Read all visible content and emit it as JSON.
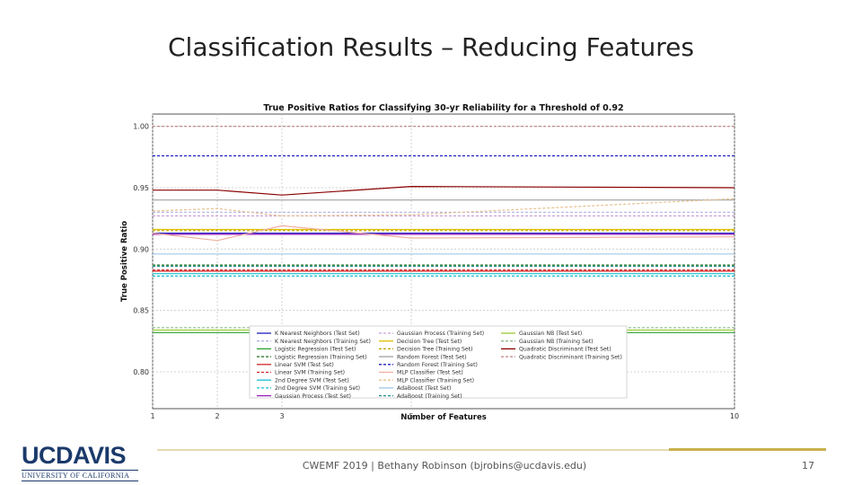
{
  "slide": {
    "title": "Classification Results – Reducing Features",
    "footer": "CWEMF 2019 | Bethany Robinson (bjrobins@ucdavis.edu)",
    "page_number": "17",
    "logo_main": "UCDAVIS",
    "logo_sub": "UNIVERSITY OF CALIFORNIA"
  },
  "chart_data": {
    "type": "line",
    "title": "True Positive Ratios for Classifying 30-yr Reliability for a Threshold of 0.92",
    "xlabel": "Number of Features",
    "ylabel": "True Positive Ratio",
    "x": [
      1,
      2,
      3,
      5,
      10
    ],
    "xlim": [
      1,
      10
    ],
    "ylim": [
      0.77,
      1.01
    ],
    "yticks": [
      "0.80",
      "0.85",
      "0.90",
      "0.95",
      "1.00"
    ],
    "xticks": [
      "1",
      "2",
      "3",
      "5",
      "10"
    ],
    "grid": true,
    "legend_position": "lower-center",
    "series": [
      {
        "name": "K Nearest Neighbors (Test Set)",
        "color": "#1f1fbf",
        "dash": "solid",
        "values": [
          0.913,
          0.913,
          0.913,
          0.913,
          0.913
        ]
      },
      {
        "name": "K Nearest Neighbors (Training Set)",
        "color": "#b0b0e0",
        "dash": "dashed",
        "values": [
          0.93,
          0.93,
          0.93,
          0.93,
          0.93
        ]
      },
      {
        "name": "Logistic Regression (Test Set)",
        "color": "#2ca02c",
        "dash": "solid",
        "values": [
          0.832,
          0.832,
          0.832,
          0.832,
          0.832
        ]
      },
      {
        "name": "Logistic Regression (Training Set)",
        "color": "#1a6e1a",
        "dash": "dashed",
        "values": [
          0.887,
          0.887,
          0.887,
          0.887,
          0.887
        ]
      },
      {
        "name": "Linear SVM (Test Set)",
        "color": "#d62728",
        "dash": "solid",
        "values": [
          0.882,
          0.882,
          0.882,
          0.882,
          0.882
        ]
      },
      {
        "name": "Linear SVM (Training Set)",
        "color": "#d62728",
        "dash": "dashed",
        "values": [
          0.883,
          0.883,
          0.883,
          0.883,
          0.883
        ]
      },
      {
        "name": "2nd Degree SVM (Test Set)",
        "color": "#17becf",
        "dash": "solid",
        "values": [
          0.88,
          0.88,
          0.88,
          0.88,
          0.88
        ]
      },
      {
        "name": "2nd Degree SVM (Training Set)",
        "color": "#17becf",
        "dash": "dashed",
        "values": [
          0.878,
          0.878,
          0.878,
          0.878,
          0.878
        ]
      },
      {
        "name": "Gaussian Process (Test Set)",
        "color": "#9b1fbf",
        "dash": "solid",
        "values": [
          0.912,
          0.912,
          0.912,
          0.912,
          0.912
        ]
      },
      {
        "name": "Gaussian Process (Training Set)",
        "color": "#c8a0d8",
        "dash": "dashed",
        "values": [
          0.927,
          0.927,
          0.927,
          0.927,
          0.927
        ]
      },
      {
        "name": "Decision Tree (Test Set)",
        "color": "#e0c000",
        "dash": "solid",
        "values": [
          0.916,
          0.916,
          0.916,
          0.916,
          0.916
        ]
      },
      {
        "name": "Decision Tree (Training Set)",
        "color": "#c0a000",
        "dash": "dashed",
        "values": [
          0.915,
          0.915,
          0.915,
          0.915,
          0.915
        ]
      },
      {
        "name": "Random Forest (Test Set)",
        "color": "#a0a0a0",
        "dash": "solid",
        "values": [
          0.94,
          0.94,
          0.94,
          0.94,
          0.94
        ]
      },
      {
        "name": "Random Forest (Training Set)",
        "color": "#1f1fbf",
        "dash": "dashed",
        "values": [
          0.976,
          0.976,
          0.976,
          0.976,
          0.976
        ]
      },
      {
        "name": "MLP Classifier (Test Set)",
        "color": "#f0b0a0",
        "dash": "solid",
        "values": [
          0.913,
          0.907,
          0.919,
          0.909,
          0.91
        ]
      },
      {
        "name": "MLP Classifier (Training Set)",
        "color": "#e8c090",
        "dash": "dashed",
        "values": [
          0.931,
          0.933,
          0.927,
          0.928,
          0.941
        ]
      },
      {
        "name": "AdaBoost (Test Set)",
        "color": "#a0c8e8",
        "dash": "solid",
        "values": [
          0.896,
          0.896,
          0.896,
          0.896,
          0.896
        ]
      },
      {
        "name": "AdaBoost (Training Set)",
        "color": "#1f8f8f",
        "dash": "dashed",
        "values": [
          0.886,
          0.886,
          0.886,
          0.886,
          0.886
        ]
      },
      {
        "name": "Gaussian NB (Test Set)",
        "color": "#9acd32",
        "dash": "solid",
        "values": [
          0.834,
          0.834,
          0.834,
          0.834,
          0.834
        ]
      },
      {
        "name": "Gaussian NB (Training Set)",
        "color": "#8fbc8f",
        "dash": "dashed",
        "values": [
          0.836,
          0.836,
          0.836,
          0.836,
          0.836
        ]
      },
      {
        "name": "Quadratic Discriminant (Test Set)",
        "color": "#8b0000",
        "dash": "solid",
        "values": [
          0.948,
          0.948,
          0.944,
          0.951,
          0.95
        ]
      },
      {
        "name": "Quadratic Discriminant (Training Set)",
        "color": "#c08080",
        "dash": "dashed",
        "values": [
          1.0,
          1.0,
          1.0,
          1.0,
          1.0
        ]
      }
    ]
  }
}
